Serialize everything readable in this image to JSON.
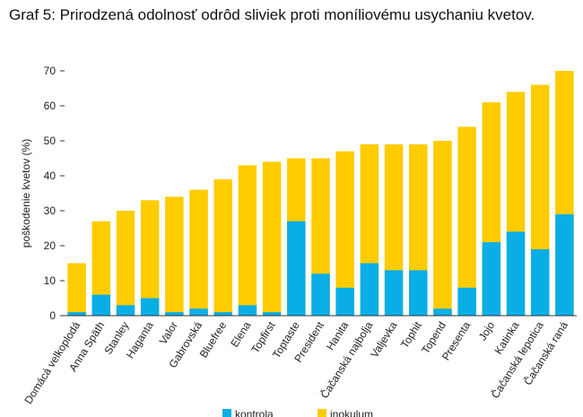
{
  "title": "Graf 5: Prirodzená odolnosť odrôd sliviek proti moníliovému usychaniu kvetov.",
  "chart_data": {
    "type": "bar",
    "title": "Graf 5: Prirodzená odolnosť odrôd sliviek proti moníliovému usychaniu kvetov.",
    "xlabel": "",
    "ylabel": "poškodenie kvetov (%)",
    "ylim": [
      0,
      70
    ],
    "yticks": [
      0,
      10,
      20,
      30,
      40,
      50,
      60,
      70
    ],
    "grid": false,
    "legend_position": "bottom",
    "categories": [
      "Domácá velkoplodá",
      "Anna Späth",
      "Stanley",
      "Haganta",
      "Valor",
      "Gabrovská",
      "Bluefree",
      "Elena",
      "Topfirst",
      "Toptaste",
      "President",
      "Hanita",
      "Čačanská najbolja",
      "Valjevka",
      "Tophit",
      "Topend",
      "Presenta",
      "Jojo",
      "Katinka",
      "Čačanská lepotica",
      "Čačanská raná"
    ],
    "series": [
      {
        "name": "kontrola",
        "color": "#0aaee6",
        "values": [
          1,
          6,
          3,
          5,
          1,
          2,
          1,
          3,
          1,
          27,
          12,
          8,
          15,
          13,
          13,
          2,
          8,
          21,
          24,
          19,
          29
        ]
      },
      {
        "name": "inokulum",
        "color": "#ffcc00",
        "values": [
          15,
          27,
          30,
          33,
          34,
          36,
          39,
          43,
          44,
          45,
          45,
          47,
          49,
          49,
          49,
          50,
          54,
          61,
          64,
          66,
          70
        ]
      }
    ]
  }
}
